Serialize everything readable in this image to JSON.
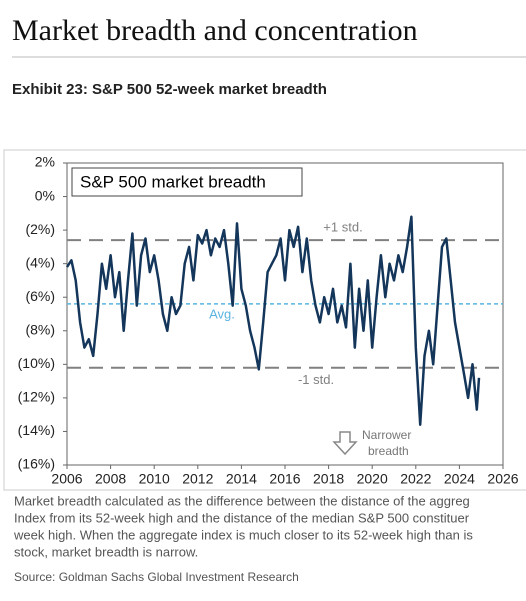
{
  "header": {
    "title": "Market breadth and concentration"
  },
  "exhibit": "Exhibit 23: S&P 500 52-week market breadth",
  "chart_data": {
    "type": "line",
    "title": "S&P 500 market breadth",
    "xlim": [
      2006,
      2026
    ],
    "xticks": [
      2006,
      2008,
      2010,
      2012,
      2014,
      2016,
      2018,
      2020,
      2022,
      2024,
      2026
    ],
    "ylim": [
      -16,
      2
    ],
    "yticks": [
      {
        "value": 2,
        "label": "2%"
      },
      {
        "value": 0,
        "label": "0%"
      },
      {
        "value": -2,
        "label": "(2%)"
      },
      {
        "value": -4,
        "label": "(4%)"
      },
      {
        "value": -6,
        "label": "(6%)"
      },
      {
        "value": -8,
        "label": "(8%)"
      },
      {
        "value": -10,
        "label": "(10%)"
      },
      {
        "value": -12,
        "label": "(12%)"
      },
      {
        "value": -14,
        "label": "(14%)"
      },
      {
        "value": -16,
        "label": "(16%)"
      }
    ],
    "reference_lines": [
      {
        "label": "+1 std.",
        "value": -2.6,
        "color": "#808080"
      },
      {
        "label": "Avg.",
        "value": -6.4,
        "color": "#5ab4e0"
      },
      {
        "label": "-1 std.",
        "value": -10.2,
        "color": "#808080"
      }
    ],
    "annotation": [
      "Narrower",
      "breadth"
    ],
    "series": [
      {
        "color": "#14365a",
        "x": [
          2006.0,
          2006.2,
          2006.4,
          2006.6,
          2006.8,
          2007.0,
          2007.2,
          2007.4,
          2007.6,
          2007.8,
          2008.0,
          2008.2,
          2008.4,
          2008.6,
          2008.8,
          2009.0,
          2009.2,
          2009.4,
          2009.6,
          2009.8,
          2010.0,
          2010.2,
          2010.4,
          2010.6,
          2010.8,
          2011.0,
          2011.2,
          2011.4,
          2011.6,
          2011.8,
          2012.0,
          2012.2,
          2012.4,
          2012.6,
          2012.8,
          2013.0,
          2013.2,
          2013.4,
          2013.6,
          2013.8,
          2014.0,
          2014.2,
          2014.4,
          2014.6,
          2014.8,
          2015.0,
          2015.2,
          2015.4,
          2015.6,
          2015.8,
          2016.0,
          2016.2,
          2016.4,
          2016.6,
          2016.8,
          2017.0,
          2017.2,
          2017.4,
          2017.6,
          2017.8,
          2018.0,
          2018.2,
          2018.4,
          2018.6,
          2018.8,
          2019.0,
          2019.2,
          2019.4,
          2019.6,
          2019.8,
          2020.0,
          2020.2,
          2020.4,
          2020.6,
          2020.8,
          2021.0,
          2021.2,
          2021.4,
          2021.6,
          2021.8,
          2022.0,
          2022.2,
          2022.4,
          2022.6,
          2022.8,
          2023.0,
          2023.2,
          2023.4,
          2023.6,
          2023.8,
          2024.0,
          2024.2,
          2024.4,
          2024.6,
          2024.8,
          2024.9
        ],
        "values": [
          -4.2,
          -3.8,
          -5.0,
          -7.5,
          -9.0,
          -8.5,
          -9.5,
          -7.0,
          -4.0,
          -5.5,
          -3.5,
          -6.0,
          -4.5,
          -8.0,
          -5.0,
          -2.2,
          -6.5,
          -3.5,
          -2.5,
          -4.5,
          -3.5,
          -5.0,
          -7.0,
          -8.0,
          -6.0,
          -7.0,
          -6.5,
          -4.0,
          -3.0,
          -5.0,
          -2.3,
          -2.8,
          -2.0,
          -3.5,
          -2.5,
          -3.0,
          -2.0,
          -4.0,
          -6.5,
          -1.6,
          -5.5,
          -6.5,
          -8.0,
          -9.0,
          -10.3,
          -7.5,
          -4.5,
          -4.0,
          -3.5,
          -2.5,
          -5.0,
          -2.0,
          -3.0,
          -1.8,
          -4.5,
          -2.5,
          -5.0,
          -6.5,
          -7.5,
          -6.0,
          -7.0,
          -5.5,
          -7.5,
          -6.5,
          -7.8,
          -4.0,
          -9.0,
          -5.5,
          -8.0,
          -5.0,
          -9.0,
          -6.0,
          -3.5,
          -6.0,
          -4.0,
          -5.0,
          -3.5,
          -4.5,
          -3.0,
          -1.2,
          -9.0,
          -13.6,
          -9.5,
          -8.0,
          -10.0,
          -6.5,
          -3.0,
          -2.5,
          -5.0,
          -7.5,
          -9.0,
          -10.5,
          -12.0,
          -10.0,
          -12.7,
          -10.8
        ]
      }
    ]
  },
  "notes": [
    "Market breadth calculated as the difference between the distance of the aggreg",
    "Index from its 52-week high and the distance of the median S&P 500 constituer",
    "week high. When the aggregate index is much closer to its 52-week high than is",
    "stock, market breadth is narrow."
  ],
  "source": "Source: Goldman Sachs Global Investment Research"
}
